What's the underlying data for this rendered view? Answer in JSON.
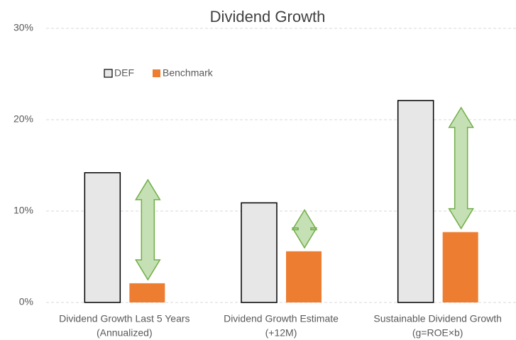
{
  "chart_data": {
    "type": "bar",
    "title": "Dividend Growth",
    "categories": [
      [
        "Dividend Growth Last 5 Years",
        "(Annualized)"
      ],
      [
        "Dividend Growth Estimate",
        "(+12M)"
      ],
      [
        "Sustainable Dividend Growth",
        "(g=ROE×b)"
      ]
    ],
    "series": [
      {
        "name": "DEF",
        "color": "#e7e7e7",
        "values": [
          14.2,
          10.9,
          22.1
        ]
      },
      {
        "name": "Benchmark",
        "color": "#ed7d31",
        "values": [
          2.1,
          5.6,
          7.7
        ]
      }
    ],
    "ylim": [
      0,
      30
    ],
    "yticks": [
      {
        "value": 0,
        "label": "0%"
      },
      {
        "value": 10,
        "label": "10%"
      },
      {
        "value": 20,
        "label": "20%"
      },
      {
        "value": 30,
        "label": "30%"
      }
    ],
    "grid": true,
    "legend": "top-left"
  }
}
